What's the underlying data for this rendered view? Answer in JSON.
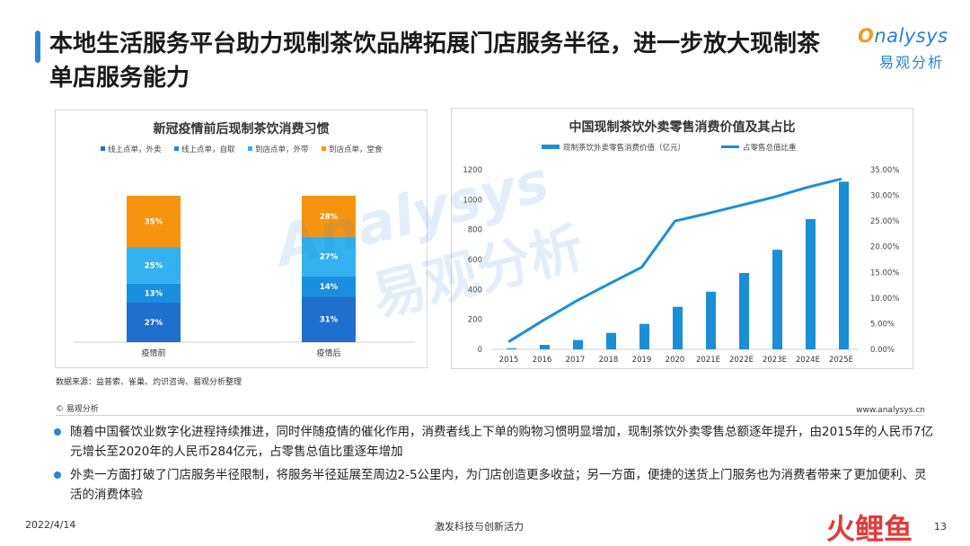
{
  "header": {
    "title": "本地生活服务平台助力现制茶饮品牌拓展门店服务半径，进一步放大现制茶单店服务能力",
    "logo_en": "nalysys",
    "logo_o": "O",
    "logo_cn": "易观分析"
  },
  "watermark": {
    "en": "Analysys",
    "cn": "易观分析"
  },
  "colors": {
    "accent": "#2c86d6",
    "online_delivery": "#1f6fcf",
    "online_pickup": "#1a8fe0",
    "store_takeaway": "#33b1f0",
    "store_dinein": "#f7940f",
    "line": "#1a8fd6",
    "bar": "#1a8fd6"
  },
  "chart_data": [
    {
      "type": "bar",
      "stacked": true,
      "title": "新冠疫情前后现制茶饮消费习惯",
      "categories": [
        "疫情前",
        "疫情后"
      ],
      "series": [
        {
          "name": "线上点单，外卖",
          "values": [
            27,
            31
          ],
          "labels": [
            "27%",
            "31%"
          ]
        },
        {
          "name": "线上点单，自取",
          "values": [
            13,
            14
          ],
          "labels": [
            "13%",
            "14%"
          ]
        },
        {
          "name": "到店点单，外带",
          "values": [
            25,
            27
          ],
          "labels": [
            "25%",
            "27%"
          ]
        },
        {
          "name": "到店点单，堂食",
          "values": [
            35,
            28
          ],
          "labels": [
            "35%",
            "28%"
          ]
        }
      ],
      "legend_position": "top"
    },
    {
      "type": "bar",
      "title": "中国现制茶饮外卖零售消费价值及其占比",
      "categories": [
        "2015",
        "2016",
        "2017",
        "2018",
        "2019",
        "2020",
        "2021E",
        "2022E",
        "2023E",
        "2024E",
        "2025E"
      ],
      "series": [
        {
          "name": "现制茶饮外卖零售消费价值（亿元）",
          "type": "bar",
          "axis": "left",
          "values": [
            7,
            30,
            62,
            110,
            170,
            284,
            385,
            510,
            665,
            870,
            1120
          ]
        },
        {
          "name": "占零售总值比重",
          "type": "line",
          "axis": "right",
          "values": [
            0.015,
            0.055,
            0.093,
            0.127,
            0.16,
            0.25,
            0.265,
            0.281,
            0.297,
            0.316,
            0.332
          ]
        }
      ],
      "ylim": [
        0,
        1200
      ],
      "yticks": [
        "0",
        "200",
        "400",
        "600",
        "800",
        "1000",
        "1200"
      ],
      "y2lim": [
        0,
        0.35
      ],
      "y2ticks": [
        "0.00%",
        "5.00%",
        "10.00%",
        "15.00%",
        "20.00%",
        "25.00%",
        "30.00%",
        "35.00%"
      ],
      "legend_position": "top"
    }
  ],
  "source": "数据来源：益普索、雀巢、灼识咨询、易观分析整理",
  "copyright": "© 易观分析",
  "site": "www.analysys.cn",
  "bullets": [
    "随着中国餐饮业数字化进程持续推进，同时伴随疫情的催化作用，消费者线上下单的购物习惯明显增加，现制茶饮外卖零售总额逐年提升，由2015年的人民币7亿元增长至2020年的人民币284亿元，占零售总值比重逐年增加",
    "外卖一方面打破了门店服务半径限制，将服务半径延展至周边2-5公里内，为门店创造更多收益；另一方面，便捷的送货上门服务也为消费者带来了更加便利、灵活的消费体验"
  ],
  "footer": {
    "date": "2022/4/14",
    "middle": "激发科技与创新活力",
    "page": "13",
    "corner_brand": "火鲤鱼"
  }
}
